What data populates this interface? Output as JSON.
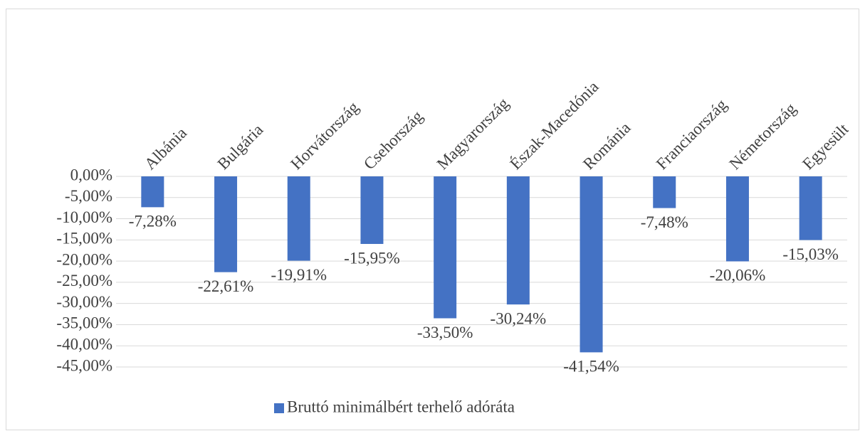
{
  "chart_data": {
    "type": "bar",
    "categories": [
      "Albánia",
      "Bulgária",
      "Horvátország",
      "Csehország",
      "Magyarország",
      "Észak-Macedónia",
      "Románia",
      "Franciaország",
      "Németország",
      "Egyesült"
    ],
    "series": [
      {
        "name": "Bruttó minimálbért terhelő adóráta",
        "color": "#4472c4",
        "values": [
          -7.28,
          -22.61,
          -19.91,
          -15.95,
          -33.5,
          -30.24,
          -41.54,
          -7.48,
          -20.06,
          -15.03
        ],
        "value_labels": [
          "-7,28%",
          "-22,61%",
          "-19,91%",
          "-15,95%",
          "-33,50%",
          "-30,24%",
          "-41,54%",
          "-7,48%",
          "-20,06%",
          "-15,03%"
        ]
      }
    ],
    "ylim": [
      -45,
      0
    ],
    "yticks": [
      {
        "value": 0,
        "label": "0,00%"
      },
      {
        "value": -5,
        "label": "-5,00%"
      },
      {
        "value": -10,
        "label": "-10,00%"
      },
      {
        "value": -15,
        "label": "-15,00%"
      },
      {
        "value": -20,
        "label": "-20,00%"
      },
      {
        "value": -25,
        "label": "-25,00%"
      },
      {
        "value": -30,
        "label": "-30,00%"
      },
      {
        "value": -35,
        "label": "-35,00%"
      },
      {
        "value": -40,
        "label": "-40,00%"
      },
      {
        "value": -45,
        "label": "-45,00%"
      }
    ],
    "grid": true,
    "legend": "bottom"
  }
}
